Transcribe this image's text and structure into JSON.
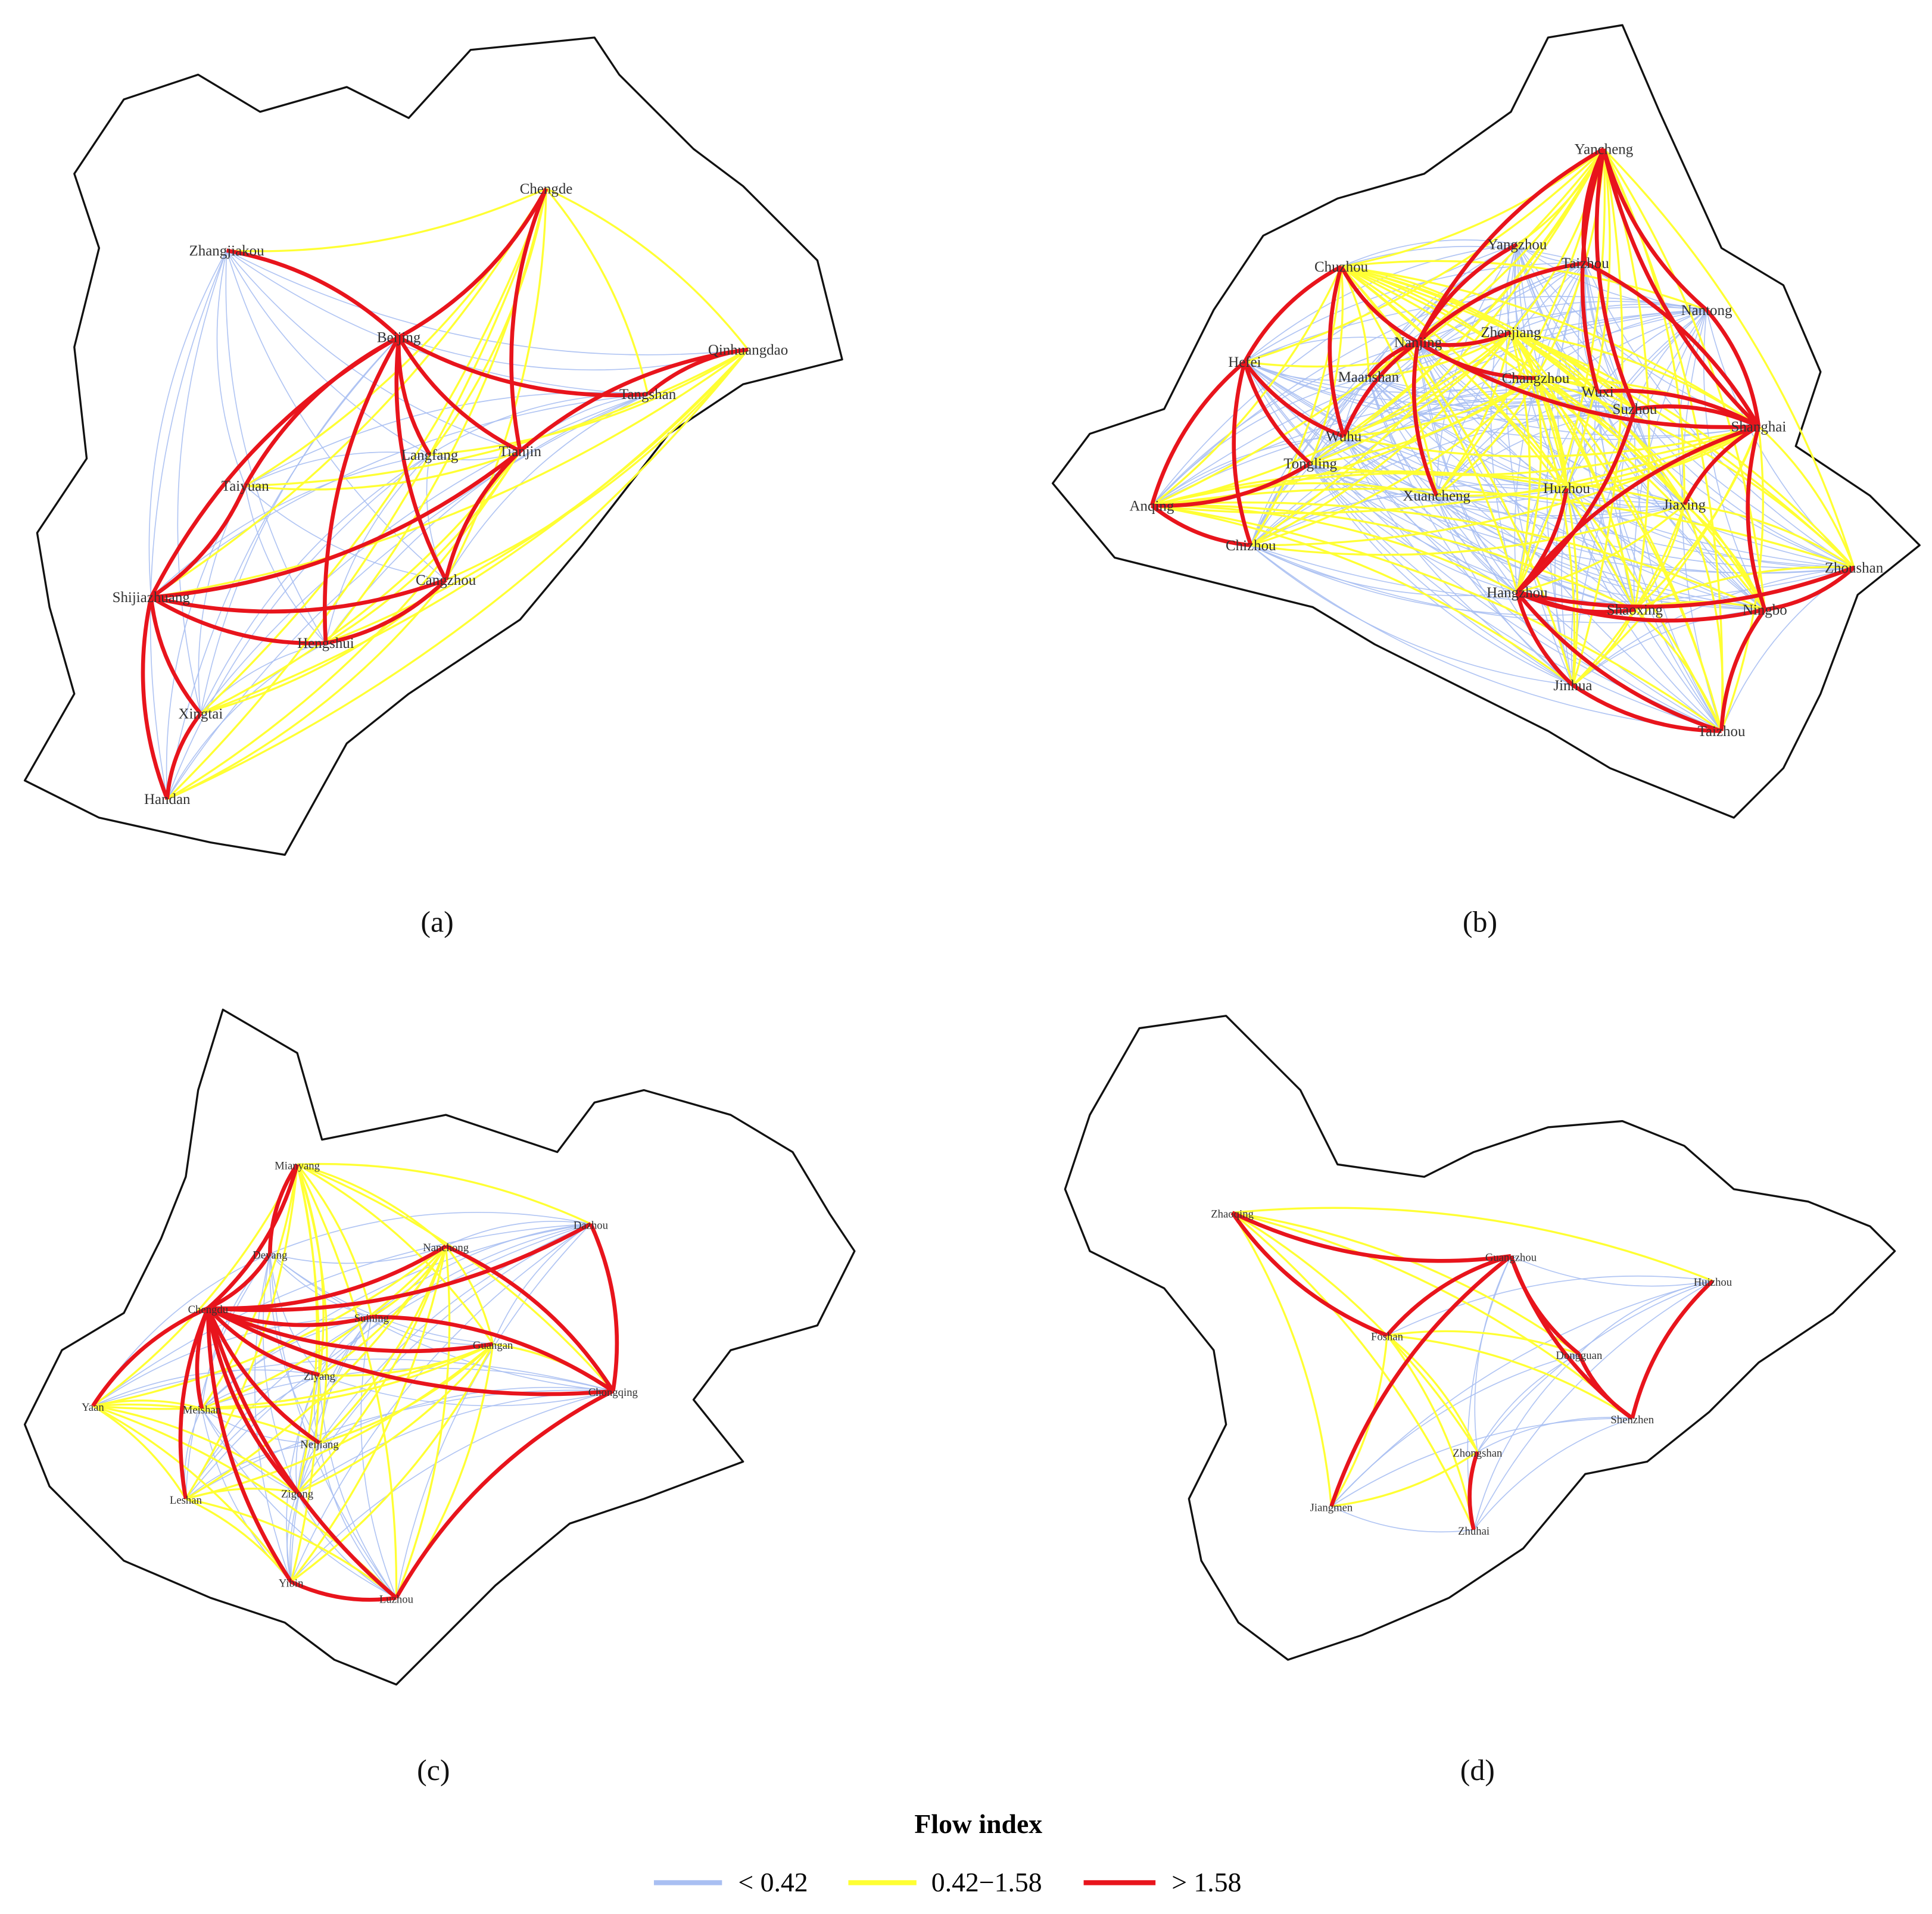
{
  "panels": [
    {
      "label": "(a)",
      "cities": [
        "Chengde",
        "Zhangjiakou",
        "Beijing",
        "Qinhuangdao",
        "Tangshan",
        "Langfang",
        "Tianjin",
        "Taiyuan",
        "Shijiazhuang",
        "Cangzhou",
        "Hengshui",
        "Xingtai",
        "Handan"
      ]
    },
    {
      "label": "(b)",
      "cities": [
        "Yancheng",
        "Yangzhou",
        "Taizhou",
        "Chuzhou",
        "Nantong",
        "Nanjing",
        "Zhenjiang",
        "Hefei",
        "Maanshan",
        "Changzhou",
        "Wuxi",
        "Suzhou",
        "Shanghai",
        "Wuhu",
        "Tongling",
        "Anqing",
        "Xuancheng",
        "Huzhou",
        "Jiaxing",
        "Chizhou",
        "Hangzhou",
        "Shaoxing",
        "Ningbo",
        "Zhoushan",
        "Jinhua",
        "Taizhou"
      ]
    },
    {
      "label": "(c)",
      "cities": [
        "Mianyang",
        "Dazhou",
        "Deyang",
        "Nanchong",
        "Chengdu",
        "Suining",
        "Guangan",
        "Ziyang",
        "Chongqing",
        "Yaan",
        "Meishan",
        "Neijiang",
        "Leshan",
        "Zigong",
        "Yibin",
        "Luzhou"
      ]
    },
    {
      "label": "(d)",
      "cities": [
        "Zhaoqing",
        "Guangzhou",
        "Huizhou",
        "Foshan",
        "Dongguan",
        "Shenzhen",
        "Zhongshan",
        "Jiangmen",
        "Zhuhai"
      ]
    }
  ],
  "legend": {
    "title": "Flow index",
    "items": [
      {
        "label": "< 0.42",
        "color": "#a9bff2"
      },
      {
        "label": "0.42−1.58",
        "color": "#ffff33"
      },
      {
        "label": "> 1.58",
        "color": "#e8141c"
      }
    ]
  }
}
